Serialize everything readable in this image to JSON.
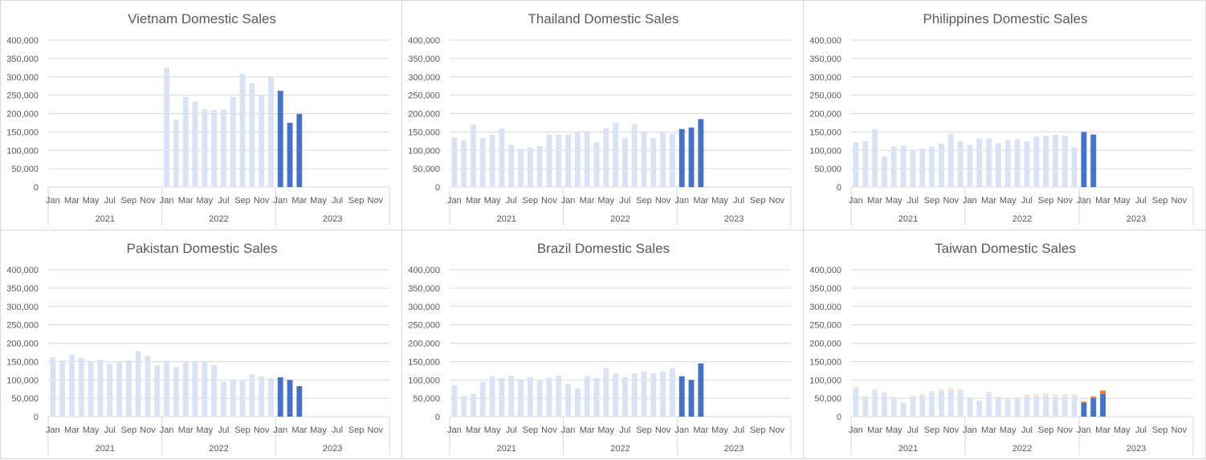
{
  "colors": {
    "faded_bar": "#dae3f3",
    "highlight_bar": "#4472c4",
    "faded_stack_top": "#fbe5d6",
    "highlight_stack_top": "#ed7d31",
    "gridline": "#d9d9d9",
    "axis_line": "#d9d9d9",
    "text": "#595959"
  },
  "chart_data": [
    {
      "type": "bar",
      "title": "Vietnam Domestic Sales",
      "yticks": [
        "0",
        "50,000",
        "100,000",
        "150,000",
        "200,000",
        "250,000",
        "300,000",
        "350,000",
        "400,000"
      ],
      "ylim": [
        0,
        400000
      ],
      "month_labels": [
        "Jan",
        "Mar",
        "May",
        "Jul",
        "Sep",
        "Nov",
        "Jan",
        "Mar",
        "May",
        "Jul",
        "Sep",
        "Nov",
        "Jan",
        "Mar",
        "May",
        "Jul",
        "Sep",
        "Nov"
      ],
      "year_labels": [
        "2021",
        "2022",
        "2023"
      ],
      "series": [
        {
          "values": [
            null,
            null,
            null,
            null,
            null,
            null,
            null,
            null,
            null,
            null,
            null,
            null,
            325000,
            183000,
            245000,
            233000,
            212000,
            210000,
            210000,
            245000,
            308000,
            283000,
            250000,
            300000,
            262000,
            175000,
            199000,
            null,
            null,
            null,
            null,
            null,
            null,
            null,
            null,
            null
          ]
        }
      ],
      "highlighted_months": 3
    },
    {
      "type": "bar",
      "title": "Thailand Domestic Sales",
      "yticks": [
        "0",
        "50,000",
        "100,000",
        "150,000",
        "200,000",
        "250,000",
        "300,000",
        "350,000",
        "400,000"
      ],
      "ylim": [
        0,
        400000
      ],
      "month_labels": [
        "Jan",
        "Mar",
        "May",
        "Jul",
        "Sep",
        "Nov",
        "Jan",
        "Mar",
        "May",
        "Jul",
        "Sep",
        "Nov",
        "Jan",
        "Mar",
        "May",
        "Jul",
        "Sep",
        "Nov"
      ],
      "year_labels": [
        "2021",
        "2022",
        "2023"
      ],
      "series": [
        {
          "values": [
            135000,
            127000,
            170000,
            133000,
            142000,
            160000,
            115000,
            104000,
            108000,
            112000,
            143000,
            143000,
            143000,
            148000,
            152000,
            122000,
            160000,
            175000,
            133000,
            172000,
            150000,
            133000,
            148000,
            145000,
            158000,
            162000,
            185000,
            null,
            null,
            null,
            null,
            null,
            null,
            null,
            null,
            null
          ]
        }
      ],
      "highlighted_months": 3
    },
    {
      "type": "bar",
      "title": "Philippines Domestic Sales",
      "yticks": [
        "0",
        "50,000",
        "100,000",
        "150,000",
        "200,000",
        "250,000",
        "300,000",
        "350,000",
        "400,000"
      ],
      "ylim": [
        0,
        400000
      ],
      "month_labels": [
        "Jan",
        "Mar",
        "May",
        "Jul",
        "Sep",
        "Nov",
        "Jan",
        "Mar",
        "May",
        "Jul",
        "Sep",
        "Nov",
        "Jan",
        "Mar",
        "May",
        "Jul",
        "Sep",
        "Nov"
      ],
      "year_labels": [
        "2021",
        "2022",
        "2023"
      ],
      "series": [
        {
          "values": [
            122000,
            125000,
            157000,
            83000,
            110000,
            113000,
            100000,
            105000,
            110000,
            118000,
            145000,
            125000,
            115000,
            132000,
            132000,
            120000,
            128000,
            130000,
            125000,
            137000,
            140000,
            142000,
            140000,
            108000,
            150000,
            143000,
            null,
            null,
            null,
            null,
            null,
            null,
            null,
            null,
            null,
            null
          ]
        }
      ],
      "highlighted_months": 2
    },
    {
      "type": "bar",
      "title": "Pakistan Domestic Sales",
      "yticks": [
        "0",
        "50,000",
        "100,000",
        "150,000",
        "200,000",
        "250,000",
        "300,000",
        "350,000",
        "400,000"
      ],
      "ylim": [
        0,
        400000
      ],
      "month_labels": [
        "Jan",
        "Mar",
        "May",
        "Jul",
        "Sep",
        "Nov",
        "Jan",
        "Mar",
        "May",
        "Jul",
        "Sep",
        "Nov",
        "Jan",
        "Mar",
        "May",
        "Jul",
        "Sep",
        "Nov"
      ],
      "year_labels": [
        "2021",
        "2022",
        "2023"
      ],
      "series": [
        {
          "values": [
            162000,
            153000,
            168000,
            160000,
            148000,
            155000,
            145000,
            148000,
            153000,
            178000,
            165000,
            140000,
            153000,
            135000,
            148000,
            152000,
            148000,
            140000,
            95000,
            100000,
            98000,
            115000,
            110000,
            105000,
            107000,
            100000,
            83000,
            null,
            null,
            null,
            null,
            null,
            null,
            null,
            null,
            null
          ]
        }
      ],
      "highlighted_months": 3
    },
    {
      "type": "bar",
      "title": "Brazil Domestic Sales",
      "yticks": [
        "0",
        "50,000",
        "100,000",
        "150,000",
        "200,000",
        "250,000",
        "300,000",
        "350,000",
        "400,000"
      ],
      "ylim": [
        0,
        400000
      ],
      "month_labels": [
        "Jan",
        "Mar",
        "May",
        "Jul",
        "Sep",
        "Nov",
        "Jan",
        "Mar",
        "May",
        "Jul",
        "Sep",
        "Nov",
        "Jan",
        "Mar",
        "May",
        "Jul",
        "Sep",
        "Nov"
      ],
      "year_labels": [
        "2021",
        "2022",
        "2023"
      ],
      "series": [
        {
          "values": [
            85000,
            57000,
            62000,
            95000,
            110000,
            105000,
            112000,
            100000,
            108000,
            98000,
            105000,
            112000,
            90000,
            77000,
            110000,
            105000,
            132000,
            118000,
            108000,
            118000,
            123000,
            118000,
            123000,
            132000,
            110000,
            100000,
            145000,
            null,
            null,
            null,
            null,
            null,
            null,
            null,
            null,
            null
          ]
        }
      ],
      "highlighted_months": 3
    },
    {
      "type": "bar",
      "stacked": true,
      "title": "Taiwan Domestic Sales",
      "yticks": [
        "0",
        "50,000",
        "100,000",
        "150,000",
        "200,000",
        "250,000",
        "300,000",
        "350,000",
        "400,000"
      ],
      "ylim": [
        0,
        400000
      ],
      "month_labels": [
        "Jan",
        "Mar",
        "May",
        "Jul",
        "Sep",
        "Nov",
        "Jan",
        "Mar",
        "May",
        "Jul",
        "Sep",
        "Nov",
        "Jan",
        "Mar",
        "May",
        "Jul",
        "Sep",
        "Nov"
      ],
      "year_labels": [
        "2021",
        "2022",
        "2023"
      ],
      "series": [
        {
          "values": [
            78000,
            55000,
            70000,
            62000,
            50000,
            35000,
            55000,
            58000,
            65000,
            68000,
            70000,
            68000,
            50000,
            42000,
            62000,
            50000,
            45000,
            50000,
            55000,
            55000,
            58000,
            55000,
            55000,
            55000,
            38000,
            50000,
            62000,
            null,
            null,
            null,
            null,
            null,
            null,
            null,
            null,
            null
          ]
        },
        {
          "values": [
            3000,
            2000,
            5000,
            5000,
            4000,
            3000,
            3000,
            4000,
            5000,
            6000,
            8000,
            7000,
            3000,
            2000,
            6000,
            5000,
            4000,
            4000,
            5000,
            7000,
            6000,
            6000,
            6000,
            6000,
            3000,
            5000,
            9000,
            null,
            null,
            null,
            null,
            null,
            null,
            null,
            null,
            null
          ]
        }
      ],
      "highlighted_months": 3
    }
  ]
}
